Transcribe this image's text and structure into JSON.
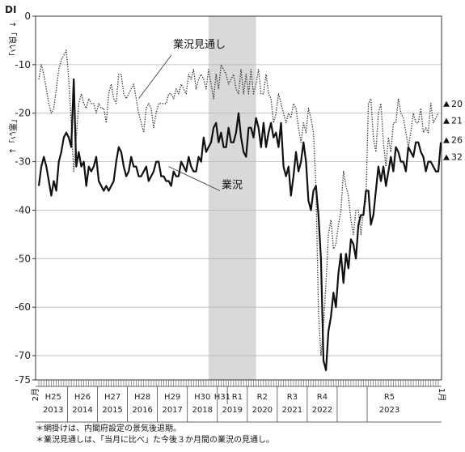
{
  "chart_data": {
    "type": "line",
    "title": "",
    "ylabel": "DI",
    "y_axis_side_labels": {
      "top": "↑「良い」",
      "bottom": "「悪い」↓"
    },
    "ylim": [
      -75,
      0
    ],
    "yticks": [
      0,
      -10,
      -20,
      -30,
      -40,
      -50,
      -60,
      -70,
      -75
    ],
    "x_start_label": "2月",
    "x_end_label": "1月",
    "shaded_region": {
      "label": "recession period",
      "from": "2018-10",
      "to": "2020-05"
    },
    "era_labels": [
      "H25",
      "H26",
      "H27",
      "H28",
      "H29",
      "H30",
      "H31",
      "R1",
      "R2",
      "R3",
      "R4",
      "R5"
    ],
    "year_labels": [
      "2013",
      "2014",
      "2015",
      "2016",
      "2017",
      "2018",
      "2019",
      "2020",
      "2021",
      "2022",
      "2023"
    ],
    "series": [
      {
        "name": "業況見通し",
        "style": "dotted",
        "end_value_label": "20",
        "end_value_label_2": "21",
        "values": [
          -13,
          -10,
          -12,
          -15,
          -18,
          -20,
          -19,
          -15,
          -11,
          -9,
          -8,
          -7,
          -13,
          -22,
          -32,
          -25,
          -18,
          -16,
          -18,
          -19,
          -17,
          -18,
          -18,
          -20,
          -18,
          -19,
          -19,
          -22,
          -16,
          -14,
          -17,
          -18,
          -12,
          -12,
          -16,
          -17,
          -16,
          -15,
          -14,
          -17,
          -20,
          -22,
          -24,
          -19,
          -18,
          -19,
          -23,
          -20,
          -18,
          -18,
          -18,
          -18,
          -16,
          -16,
          -17,
          -15,
          -16,
          -14,
          -15,
          -16,
          -12,
          -13,
          -11,
          -15,
          -13,
          -12,
          -13,
          -15,
          -11,
          -14,
          -17,
          -12,
          -15,
          -10,
          -11,
          -12,
          -14,
          -13,
          -12,
          -15,
          -16,
          -11,
          -16,
          -12,
          -16,
          -11,
          -16,
          -14,
          -11,
          -16,
          -16,
          -12,
          -16,
          -17,
          -22,
          -20,
          -16,
          -18,
          -20,
          -22,
          -20,
          -21,
          -18,
          -19,
          -23,
          -26,
          -22,
          -24,
          -19,
          -21,
          -24,
          -35,
          -61,
          -70,
          -64,
          -55,
          -45,
          -42,
          -48,
          -47,
          -43,
          -40,
          -32,
          -35,
          -37,
          -42,
          -45,
          -40,
          -40,
          -45,
          -40,
          -38,
          -18,
          -17,
          -25,
          -28,
          -20,
          -18,
          -26,
          -31,
          -25,
          -28,
          -22,
          -22,
          -17,
          -20,
          -21,
          -24,
          -27,
          -24,
          -20,
          -22,
          -22,
          -19,
          -24,
          -23,
          -24,
          -18,
          -22,
          -21,
          -20
        ]
      },
      {
        "name": "業況",
        "style": "solid",
        "end_value_label": "26",
        "end_value_label_2": "32",
        "values": [
          -35,
          -31,
          -29,
          -31,
          -34,
          -37,
          -34,
          -36,
          -30,
          -28,
          -25,
          -24,
          -25,
          -27,
          -13,
          -31,
          -28,
          -31,
          -30,
          -35,
          -31,
          -32,
          -31,
          -29,
          -34,
          -35,
          -36,
          -35,
          -36,
          -35,
          -34,
          -30,
          -27,
          -28,
          -31,
          -33,
          -32,
          -29,
          -31,
          -31,
          -33,
          -33,
          -32,
          -31,
          -34,
          -33,
          -32,
          -30,
          -30,
          -33,
          -33,
          -34,
          -34,
          -35,
          -32,
          -33,
          -33,
          -30,
          -31,
          -32,
          -29,
          -31,
          -32,
          -32,
          -29,
          -30,
          -25,
          -28,
          -27,
          -26,
          -23,
          -22,
          -26,
          -24,
          -27,
          -27,
          -23,
          -26,
          -26,
          -24,
          -20,
          -25,
          -28,
          -29,
          -23,
          -23,
          -25,
          -21,
          -23,
          -27,
          -22,
          -27,
          -24,
          -22,
          -25,
          -24,
          -27,
          -22,
          -31,
          -33,
          -31,
          -37,
          -33,
          -28,
          -32,
          -30,
          -26,
          -30,
          -38,
          -40,
          -36,
          -35,
          -41,
          -50,
          -71,
          -73,
          -65,
          -62,
          -57,
          -60,
          -53,
          -49,
          -55,
          -49,
          -52,
          -46,
          -47,
          -50,
          -43,
          -41,
          -41,
          -36,
          -36,
          -43,
          -41,
          -36,
          -31,
          -34,
          -31,
          -35,
          -32,
          -29,
          -32,
          -27,
          -28,
          -30,
          -30,
          -32,
          -27,
          -28,
          -29,
          -26,
          -26,
          -28,
          -29,
          -32,
          -30,
          -30,
          -31,
          -32,
          -32,
          -26
        ]
      }
    ]
  },
  "annotations": {
    "outlook_label": "業況見通し",
    "business_label": "業況"
  },
  "notes": [
    "＊網掛けは、内閣府設定の景気後退期。",
    "＊業況見通しは、「当月に比べ」た今後３か月間の業況の見通し。"
  ]
}
